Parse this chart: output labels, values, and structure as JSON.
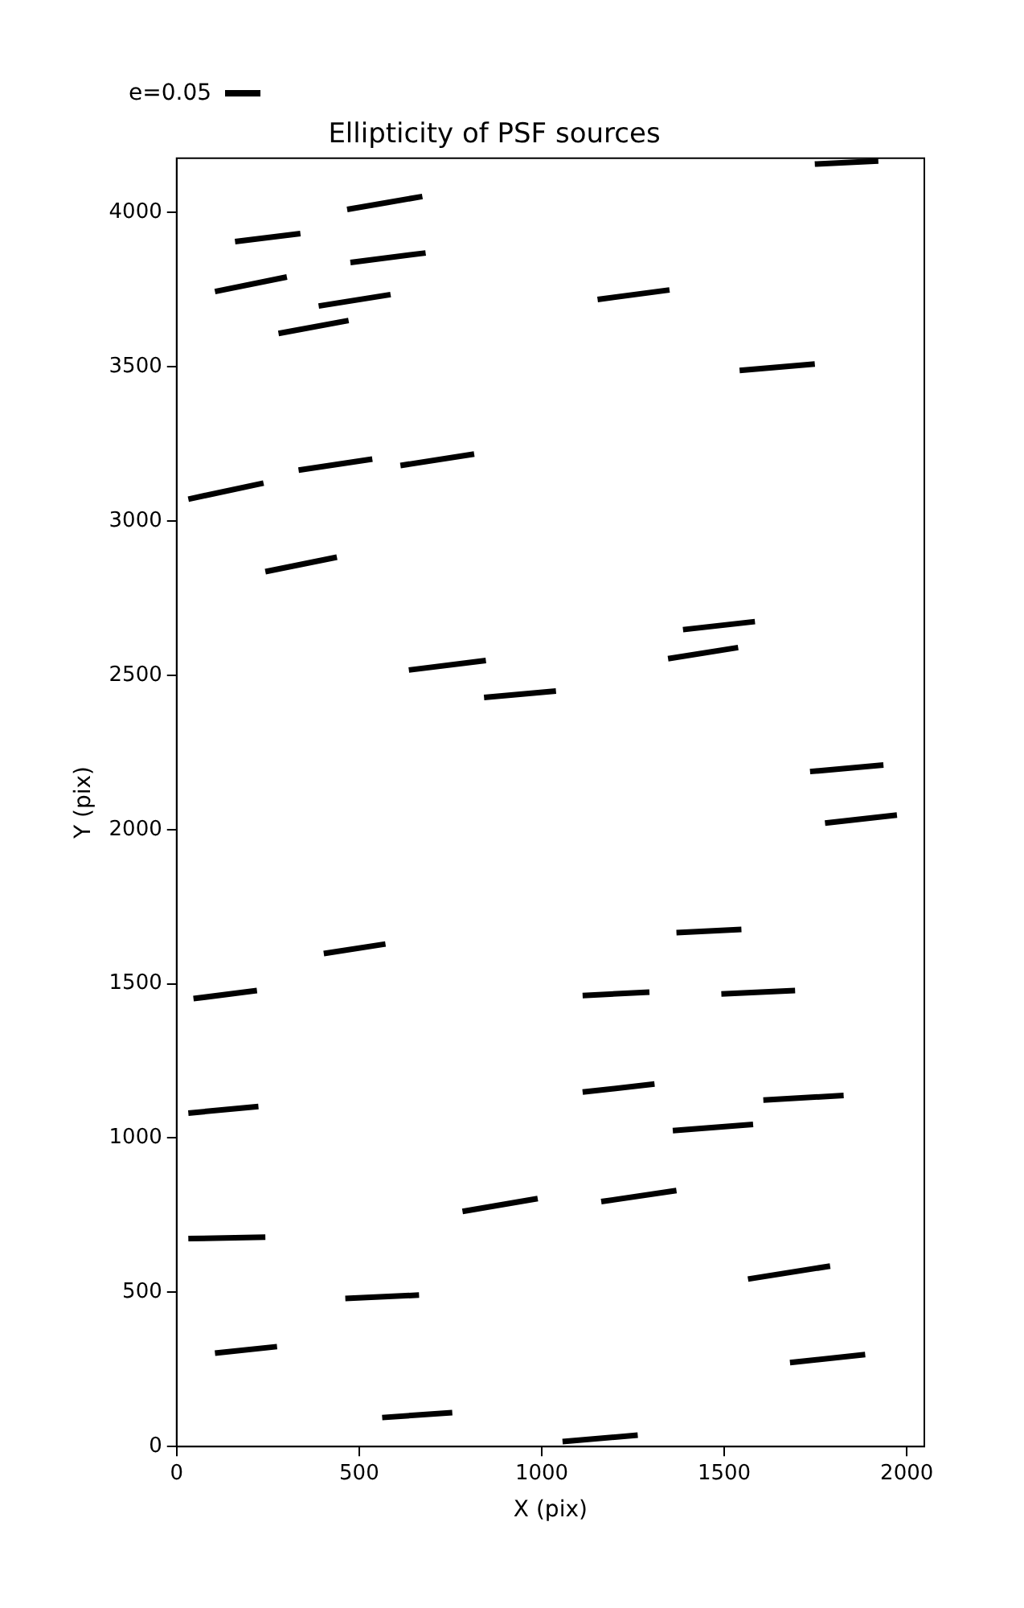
{
  "chart_data": {
    "type": "line",
    "title": "Ellipticity of PSF sources",
    "xlabel": "X (pix)",
    "ylabel": "Y (pix)",
    "xlim": [
      0,
      2048
    ],
    "xticks": [
      0,
      500,
      1000,
      1500,
      2000
    ],
    "ylim": [
      0,
      4176
    ],
    "yticks": [
      0,
      500,
      1000,
      1500,
      2000,
      2500,
      3000,
      3500,
      4000
    ],
    "grid": false,
    "marker": "none",
    "line_style": "solid",
    "annotations": [
      "e=0.05"
    ],
    "series": [
      {
        "color": "#000000",
        "x": [
          160,
          339
        ],
        "values": [
          3906,
          3932
        ]
      },
      {
        "color": "#000000",
        "x": [
          467,
          673
        ],
        "values": [
          4010,
          4052
        ]
      },
      {
        "color": "#000000",
        "x": [
          105,
          302
        ],
        "values": [
          3744,
          3791
        ]
      },
      {
        "color": "#000000",
        "x": [
          476,
          682
        ],
        "values": [
          3838,
          3869
        ]
      },
      {
        "color": "#000000",
        "x": [
          389,
          586
        ],
        "values": [
          3697,
          3734
        ]
      },
      {
        "color": "#000000",
        "x": [
          279,
          471
        ],
        "values": [
          3608,
          3650
        ]
      },
      {
        "color": "#000000",
        "x": [
          1153,
          1350
        ],
        "values": [
          3718,
          3749
        ]
      },
      {
        "color": "#000000",
        "x": [
          1748,
          1922
        ],
        "values": [
          4157,
          4167
        ]
      },
      {
        "color": "#000000",
        "x": [
          1542,
          1748
        ],
        "values": [
          3488,
          3509
        ]
      },
      {
        "color": "#000000",
        "x": [
          32,
          238
        ],
        "values": [
          3071,
          3123
        ]
      },
      {
        "color": "#000000",
        "x": [
          334,
          536
        ],
        "values": [
          3165,
          3201
        ]
      },
      {
        "color": "#000000",
        "x": [
          613,
          815
        ],
        "values": [
          3180,
          3217
        ]
      },
      {
        "color": "#000000",
        "x": [
          243,
          439
        ],
        "values": [
          2836,
          2883
        ]
      },
      {
        "color": "#000000",
        "x": [
          636,
          847
        ],
        "values": [
          2517,
          2548
        ]
      },
      {
        "color": "#000000",
        "x": [
          842,
          1039
        ],
        "values": [
          2428,
          2449
        ]
      },
      {
        "color": "#000000",
        "x": [
          1387,
          1584
        ],
        "values": [
          2648,
          2674
        ]
      },
      {
        "color": "#000000",
        "x": [
          1346,
          1538
        ],
        "values": [
          2554,
          2590
        ]
      },
      {
        "color": "#000000",
        "x": [
          1735,
          1936
        ],
        "values": [
          2188,
          2209
        ]
      },
      {
        "color": "#000000",
        "x": [
          1776,
          1973
        ],
        "values": [
          2021,
          2047
        ]
      },
      {
        "color": "#000000",
        "x": [
          46,
          220
        ],
        "values": [
          1452,
          1478
        ]
      },
      {
        "color": "#000000",
        "x": [
          403,
          572
        ],
        "values": [
          1598,
          1629
        ]
      },
      {
        "color": "#000000",
        "x": [
          1112,
          1295
        ],
        "values": [
          1462,
          1473
        ]
      },
      {
        "color": "#000000",
        "x": [
          1369,
          1547
        ],
        "values": [
          1666,
          1676
        ]
      },
      {
        "color": "#000000",
        "x": [
          1492,
          1694
        ],
        "values": [
          1467,
          1478
        ]
      },
      {
        "color": "#000000",
        "x": [
          32,
          224
        ],
        "values": [
          1081,
          1102
        ]
      },
      {
        "color": "#000000",
        "x": [
          1112,
          1309
        ],
        "values": [
          1149,
          1175
        ]
      },
      {
        "color": "#000000",
        "x": [
          1359,
          1579
        ],
        "values": [
          1024,
          1044
        ]
      },
      {
        "color": "#000000",
        "x": [
          1607,
          1827
        ],
        "values": [
          1123,
          1138
        ]
      },
      {
        "color": "#000000",
        "x": [
          783,
          989
        ],
        "values": [
          762,
          804
        ]
      },
      {
        "color": "#000000",
        "x": [
          1163,
          1369
        ],
        "values": [
          794,
          830
        ]
      },
      {
        "color": "#000000",
        "x": [
          32,
          243
        ],
        "values": [
          674,
          679
        ]
      },
      {
        "color": "#000000",
        "x": [
          462,
          664
        ],
        "values": [
          480,
          491
        ]
      },
      {
        "color": "#000000",
        "x": [
          1565,
          1790
        ],
        "values": [
          543,
          585
        ]
      },
      {
        "color": "#000000",
        "x": [
          105,
          275
        ],
        "values": [
          303,
          324
        ]
      },
      {
        "color": "#000000",
        "x": [
          1680,
          1886
        ],
        "values": [
          272,
          298
        ]
      },
      {
        "color": "#000000",
        "x": [
          563,
          755
        ],
        "values": [
          94,
          110
        ]
      },
      {
        "color": "#000000",
        "x": [
          1057,
          1263
        ],
        "values": [
          16,
          37
        ]
      }
    ]
  }
}
